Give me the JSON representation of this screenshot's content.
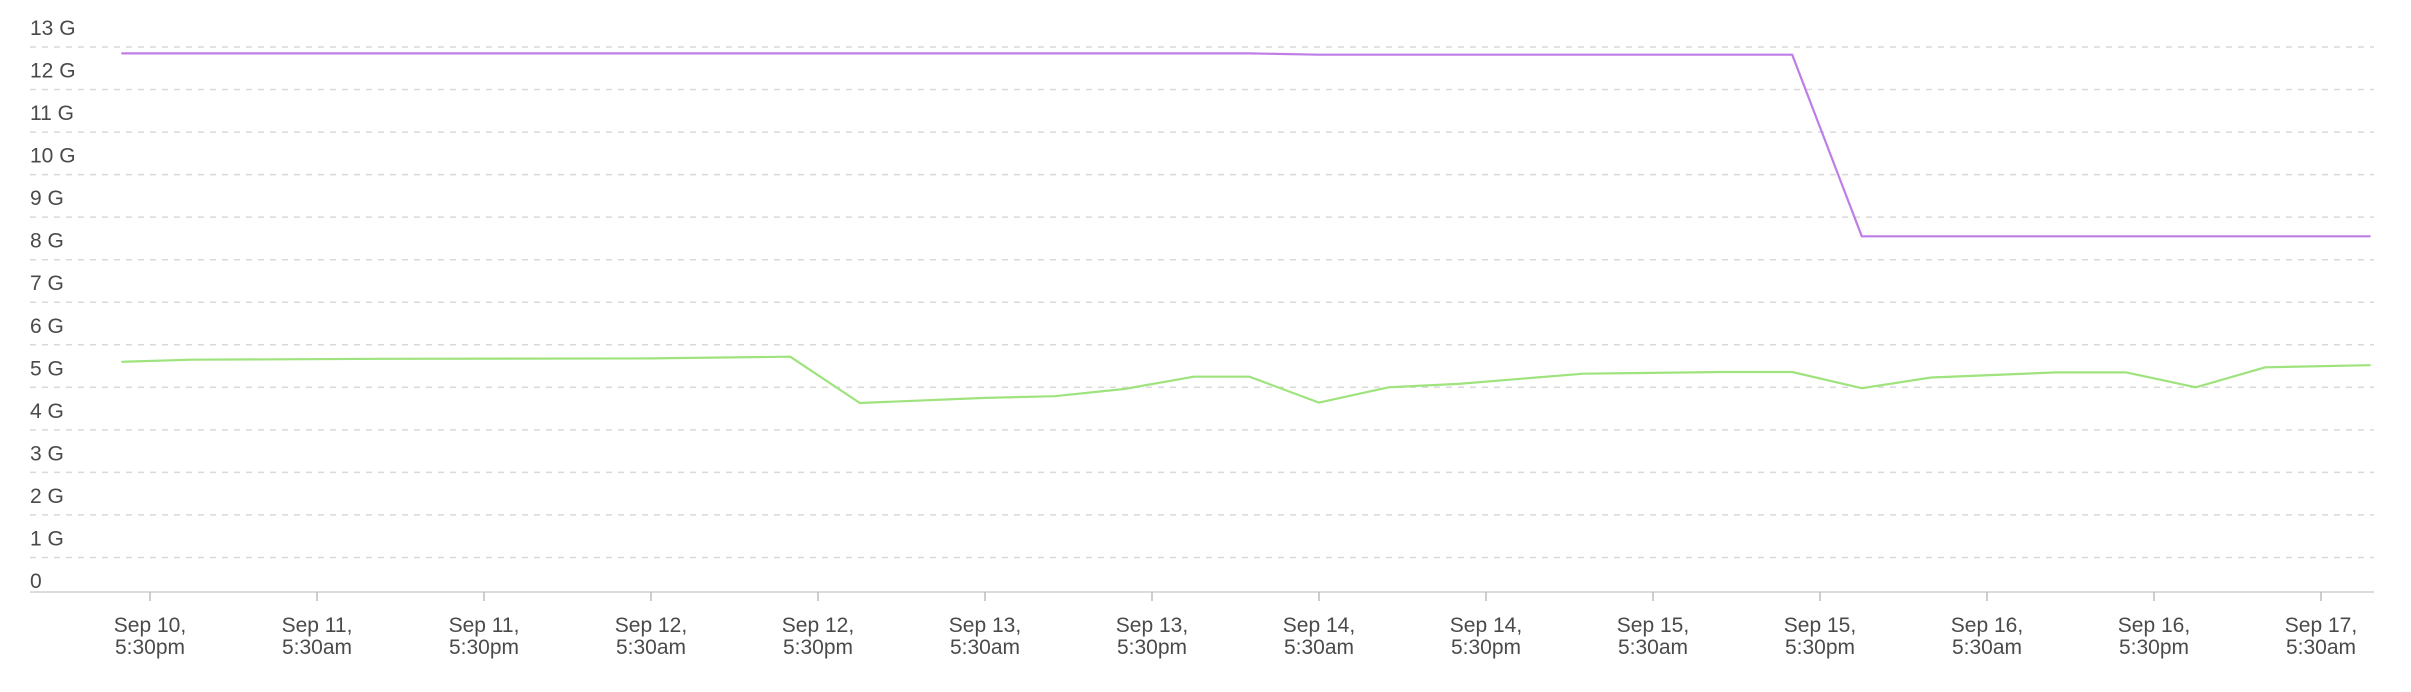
{
  "chart_data": {
    "type": "line",
    "title": "",
    "xlabel": "",
    "ylabel": "",
    "ylim": [
      0,
      13
    ],
    "grid": true,
    "legend": "none",
    "y_ticks": [
      {
        "value": 0,
        "label": "0"
      },
      {
        "value": 1,
        "label": "1 G"
      },
      {
        "value": 2,
        "label": "2 G"
      },
      {
        "value": 3,
        "label": "3 G"
      },
      {
        "value": 4,
        "label": "4 G"
      },
      {
        "value": 5,
        "label": "5 G"
      },
      {
        "value": 6,
        "label": "6 G"
      },
      {
        "value": 7,
        "label": "7 G"
      },
      {
        "value": 8,
        "label": "8 G"
      },
      {
        "value": 9,
        "label": "9 G"
      },
      {
        "value": 10,
        "label": "10 G"
      },
      {
        "value": 11,
        "label": "11 G"
      },
      {
        "value": 12,
        "label": "12 G"
      },
      {
        "value": 13,
        "label": "13 G"
      }
    ],
    "x_ticks": [
      {
        "lines": [
          "Sep 10,",
          "5:30pm"
        ]
      },
      {
        "lines": [
          "Sep 11,",
          "5:30am"
        ]
      },
      {
        "lines": [
          "Sep 11,",
          "5:30pm"
        ]
      },
      {
        "lines": [
          "Sep 12,",
          "5:30am"
        ]
      },
      {
        "lines": [
          "Sep 12,",
          "5:30pm"
        ]
      },
      {
        "lines": [
          "Sep 13,",
          "5:30am"
        ]
      },
      {
        "lines": [
          "Sep 13,",
          "5:30pm"
        ]
      },
      {
        "lines": [
          "Sep 14,",
          "5:30am"
        ]
      },
      {
        "lines": [
          "Sep 14,",
          "5:30pm"
        ]
      },
      {
        "lines": [
          "Sep 15,",
          "5:30am"
        ]
      },
      {
        "lines": [
          "Sep 15,",
          "5:30pm"
        ]
      },
      {
        "lines": [
          "Sep 16,",
          "5:30am"
        ]
      },
      {
        "lines": [
          "Sep 16,",
          "5:30pm"
        ]
      },
      {
        "lines": [
          "Sep 17,",
          "5:30am"
        ]
      }
    ],
    "series": [
      {
        "color": "#bf7ee6",
        "points": [
          {
            "x": "Sep 10, 15:30",
            "y": 12.85
          },
          {
            "x": "Sep 14, 0:30",
            "y": 12.85
          },
          {
            "x": "Sep 14, 5:30",
            "y": 12.82
          },
          {
            "x": "Sep 15, 15:30",
            "y": 12.82
          },
          {
            "x": "Sep 15, 20:30",
            "y": 8.55
          },
          {
            "x": "Sep 17, 9:00",
            "y": 8.55
          }
        ]
      },
      {
        "color": "#9ee37d",
        "points": [
          {
            "x": "Sep 10, 15:30",
            "y": 5.6
          },
          {
            "x": "Sep 10, 20:30",
            "y": 5.65
          },
          {
            "x": "Sep 11, 10:30",
            "y": 5.67
          },
          {
            "x": "Sep 12, 5:30",
            "y": 5.68
          },
          {
            "x": "Sep 12, 15:30",
            "y": 5.72
          },
          {
            "x": "Sep 12, 20:30",
            "y": 4.63
          },
          {
            "x": "Sep 13, 5:30",
            "y": 4.75
          },
          {
            "x": "Sep 13, 10:30",
            "y": 4.79
          },
          {
            "x": "Sep 13, 15:30",
            "y": 4.96
          },
          {
            "x": "Sep 13, 20:30",
            "y": 5.25
          },
          {
            "x": "Sep 14, 0:30",
            "y": 5.25
          },
          {
            "x": "Sep 14, 5:30",
            "y": 4.64
          },
          {
            "x": "Sep 14, 10:30",
            "y": 5.0
          },
          {
            "x": "Sep 14, 15:30",
            "y": 5.08
          },
          {
            "x": "Sep 15, 0:30",
            "y": 5.32
          },
          {
            "x": "Sep 15, 10:30",
            "y": 5.36
          },
          {
            "x": "Sep 15, 15:30",
            "y": 5.36
          },
          {
            "x": "Sep 15, 20:30",
            "y": 4.98
          },
          {
            "x": "Sep 16, 1:30",
            "y": 5.23
          },
          {
            "x": "Sep 16, 10:30",
            "y": 5.35
          },
          {
            "x": "Sep 16, 15:30",
            "y": 5.35
          },
          {
            "x": "Sep 16, 20:30",
            "y": 5.0
          },
          {
            "x": "Sep 17, 1:30",
            "y": 5.47
          },
          {
            "x": "Sep 17, 9:00",
            "y": 5.52
          }
        ]
      }
    ]
  }
}
